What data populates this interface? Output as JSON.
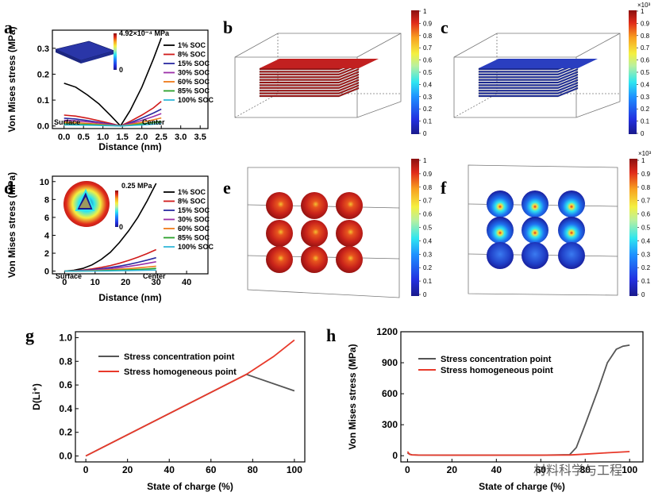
{
  "panels": {
    "a": {
      "letter": "a"
    },
    "b": {
      "letter": "b"
    },
    "c": {
      "letter": "c"
    },
    "d": {
      "letter": "d"
    },
    "e": {
      "letter": "e"
    },
    "f": {
      "letter": "f"
    },
    "g": {
      "letter": "g"
    },
    "h": {
      "letter": "h"
    }
  },
  "colorbars": {
    "b": {
      "ticks": [
        "1",
        "0.9",
        "0.8",
        "0.7",
        "0.6",
        "0.5",
        "0.4",
        "0.3",
        "0.2",
        "0.1",
        "0"
      ],
      "exp": ""
    },
    "c": {
      "ticks": [
        "1",
        "0.9",
        "0.8",
        "0.7",
        "0.6",
        "0.5",
        "0.4",
        "0.3",
        "0.2",
        "0.1",
        "0"
      ],
      "exp": "×10³"
    },
    "e": {
      "ticks": [
        "1",
        "0.9",
        "0.8",
        "0.7",
        "0.6",
        "0.5",
        "0.4",
        "0.3",
        "0.2",
        "0.1",
        "0"
      ],
      "exp": ""
    },
    "f": {
      "ticks": [
        "1",
        "0.9",
        "0.8",
        "0.7",
        "0.6",
        "0.5",
        "0.4",
        "0.3",
        "0.2",
        "0.1",
        "0"
      ],
      "exp": "×10³"
    }
  },
  "colors": {
    "inset_blue": "#2a36a8",
    "red_slab": "#b81a1a",
    "blue_slab": "#2436b0"
  },
  "watermark": "材料科学与工程",
  "chart_data": [
    {
      "panel": "a",
      "type": "line",
      "xlabel": "Distance (nm)",
      "ylabel": "Von Mises stress (MPa)",
      "xlim": [
        -0.3,
        3.7
      ],
      "ylim": [
        -0.01,
        0.37
      ],
      "xticks": [
        0.0,
        0.5,
        1.0,
        1.5,
        2.0,
        2.5,
        3.0,
        3.5
      ],
      "xtick_labels": [
        "0.0",
        "0.5",
        "1.0",
        "1.5",
        "2.0",
        "2.5",
        "3.0",
        "3.5"
      ],
      "yticks": [
        0.0,
        0.1,
        0.2,
        0.3
      ],
      "ytick_labels": [
        "0.0",
        "0.1",
        "0.2",
        "0.3"
      ],
      "annotations": [
        "Surface",
        "Center"
      ],
      "inset_label": "4.92×10⁻⁴ MPa",
      "inset_zero": "0",
      "series": [
        {
          "name": "1% SOC",
          "color": "#000000",
          "x": [
            0,
            0.3,
            0.6,
            0.9,
            1.2,
            1.45,
            1.7,
            2.0,
            2.3,
            2.5
          ],
          "y": [
            0.165,
            0.15,
            0.12,
            0.085,
            0.04,
            0.0,
            0.06,
            0.15,
            0.26,
            0.34
          ]
        },
        {
          "name": "8% SOC",
          "color": "#d01a1a",
          "x": [
            0,
            0.3,
            0.6,
            0.9,
            1.2,
            1.45,
            1.7,
            2.0,
            2.3,
            2.5
          ],
          "y": [
            0.042,
            0.038,
            0.03,
            0.02,
            0.01,
            0.0,
            0.018,
            0.042,
            0.07,
            0.095
          ]
        },
        {
          "name": "15% SOC",
          "color": "#2a2aa0",
          "x": [
            0,
            0.3,
            0.6,
            0.9,
            1.2,
            1.45,
            1.7,
            2.0,
            2.3,
            2.5
          ],
          "y": [
            0.03,
            0.027,
            0.021,
            0.014,
            0.007,
            0.0,
            0.012,
            0.03,
            0.05,
            0.065
          ]
        },
        {
          "name": "30% SOC",
          "color": "#9b30a8",
          "x": [
            0,
            0.3,
            0.6,
            0.9,
            1.2,
            1.45,
            1.7,
            2.0,
            2.3,
            2.5
          ],
          "y": [
            0.022,
            0.02,
            0.016,
            0.011,
            0.005,
            0.0,
            0.009,
            0.022,
            0.037,
            0.048
          ]
        },
        {
          "name": "60% SOC",
          "color": "#ee7a1a",
          "x": [
            0,
            0.3,
            0.6,
            0.9,
            1.2,
            1.45,
            1.7,
            2.0,
            2.3,
            2.5
          ],
          "y": [
            0.014,
            0.013,
            0.01,
            0.007,
            0.003,
            0.0,
            0.006,
            0.014,
            0.024,
            0.031
          ]
        },
        {
          "name": "85% SOC",
          "color": "#2aa02a",
          "x": [
            0,
            0.3,
            0.6,
            0.9,
            1.2,
            1.45,
            1.7,
            2.0,
            2.3,
            2.5
          ],
          "y": [
            0.008,
            0.007,
            0.006,
            0.004,
            0.002,
            0.0,
            0.003,
            0.008,
            0.013,
            0.017
          ]
        },
        {
          "name": "100% SOC",
          "color": "#33b8d8",
          "x": [
            0,
            0.3,
            0.6,
            0.9,
            1.2,
            1.45,
            1.7,
            2.0,
            2.3,
            2.5
          ],
          "y": [
            0.004,
            0.0035,
            0.003,
            0.002,
            0.001,
            0.0,
            0.0015,
            0.004,
            0.007,
            0.009
          ]
        }
      ]
    },
    {
      "panel": "d",
      "type": "line",
      "xlabel": "Distance (nm)",
      "ylabel": "Von Mises stress (MPa)",
      "xlim": [
        -4,
        47
      ],
      "ylim": [
        -0.3,
        10.6
      ],
      "xticks": [
        0,
        10,
        20,
        30,
        40
      ],
      "xtick_labels": [
        "0",
        "10",
        "20",
        "30",
        "40"
      ],
      "yticks": [
        0,
        2,
        4,
        6,
        8,
        10
      ],
      "ytick_labels": [
        "0",
        "2",
        "4",
        "6",
        "8",
        "10"
      ],
      "annotations": [
        "Surface",
        "Center"
      ],
      "inset_label": "0.25 MPa",
      "inset_zero": "0",
      "series": [
        {
          "name": "1% SOC",
          "color": "#000000",
          "x": [
            0,
            3,
            6,
            9,
            12,
            15,
            18,
            21,
            24,
            27,
            30
          ],
          "y": [
            0,
            0.1,
            0.3,
            0.7,
            1.3,
            2.1,
            3.2,
            4.5,
            6.0,
            7.8,
            9.8
          ]
        },
        {
          "name": "8% SOC",
          "color": "#d01a1a",
          "x": [
            0,
            3,
            6,
            9,
            12,
            15,
            18,
            21,
            24,
            27,
            30
          ],
          "y": [
            0,
            0.05,
            0.12,
            0.25,
            0.42,
            0.62,
            0.88,
            1.2,
            1.55,
            1.95,
            2.4
          ]
        },
        {
          "name": "15% SOC",
          "color": "#2a2aa0",
          "x": [
            0,
            3,
            6,
            9,
            12,
            15,
            18,
            21,
            24,
            27,
            30
          ],
          "y": [
            0,
            0.03,
            0.08,
            0.16,
            0.27,
            0.4,
            0.56,
            0.75,
            0.98,
            1.22,
            1.5
          ]
        },
        {
          "name": "30% SOC",
          "color": "#9b30a8",
          "x": [
            0,
            3,
            6,
            9,
            12,
            15,
            18,
            21,
            24,
            27,
            30
          ],
          "y": [
            0,
            0.02,
            0.06,
            0.11,
            0.19,
            0.28,
            0.39,
            0.52,
            0.68,
            0.86,
            1.05
          ]
        },
        {
          "name": "60% SOC",
          "color": "#ee7a1a",
          "x": [
            0,
            3,
            6,
            9,
            12,
            15,
            18,
            21,
            24,
            27,
            30
          ],
          "y": [
            0,
            0.01,
            0.03,
            0.06,
            0.1,
            0.15,
            0.21,
            0.28,
            0.36,
            0.45,
            0.55
          ]
        },
        {
          "name": "85% SOC",
          "color": "#2aa02a",
          "x": [
            0,
            3,
            6,
            9,
            12,
            15,
            18,
            21,
            24,
            27,
            30
          ],
          "y": [
            0,
            0.005,
            0.015,
            0.03,
            0.05,
            0.08,
            0.11,
            0.15,
            0.19,
            0.24,
            0.3
          ]
        },
        {
          "name": "100% SOC",
          "color": "#33b8d8",
          "x": [
            0,
            3,
            6,
            9,
            12,
            15,
            18,
            21,
            24,
            27,
            30
          ],
          "y": [
            0,
            0.002,
            0.006,
            0.012,
            0.02,
            0.03,
            0.045,
            0.06,
            0.08,
            0.1,
            0.12
          ]
        }
      ]
    },
    {
      "panel": "g",
      "type": "line",
      "xlabel": "State of charge (%)",
      "ylabel": "D(Li⁺)",
      "xlim": [
        -5,
        105
      ],
      "ylim": [
        -0.05,
        1.05
      ],
      "xticks": [
        0,
        20,
        40,
        60,
        80,
        100
      ],
      "xtick_labels": [
        "0",
        "20",
        "40",
        "60",
        "80",
        "100"
      ],
      "yticks": [
        0.0,
        0.2,
        0.4,
        0.6,
        0.8,
        1.0
      ],
      "ytick_labels": [
        "0.0",
        "0.2",
        "0.4",
        "0.6",
        "0.8",
        "1.0"
      ],
      "series": [
        {
          "name": "Stress concentration point",
          "color": "#555555",
          "x": [
            0,
            77,
            100
          ],
          "y": [
            0.0,
            0.69,
            0.55
          ]
        },
        {
          "name": "Stress homogeneous point",
          "color": "#e8392a",
          "x": [
            0,
            77,
            90,
            100
          ],
          "y": [
            0.0,
            0.69,
            0.84,
            0.98
          ]
        }
      ]
    },
    {
      "panel": "h",
      "type": "line",
      "xlabel": "State of charge (%)",
      "ylabel": "Von Mises stress (MPa)",
      "xlim": [
        -3,
        106
      ],
      "ylim": [
        -60,
        1200
      ],
      "xticks": [
        0,
        20,
        40,
        60,
        80,
        100
      ],
      "xtick_labels": [
        "0",
        "20",
        "40",
        "60",
        "80",
        "100"
      ],
      "yticks": [
        0,
        300,
        600,
        900,
        1200
      ],
      "ytick_labels": [
        "0",
        "300",
        "600",
        "900",
        "1200"
      ],
      "series": [
        {
          "name": "Stress concentration point",
          "color": "#555555",
          "x": [
            0,
            1,
            2,
            5,
            20,
            40,
            60,
            73,
            76,
            80,
            86,
            90,
            94,
            97,
            100
          ],
          "y": [
            25,
            15,
            8,
            6,
            5,
            5,
            5,
            10,
            80,
            300,
            650,
            900,
            1030,
            1060,
            1070
          ]
        },
        {
          "name": "Stress homogeneous point",
          "color": "#e8392a",
          "x": [
            0,
            0.5,
            1,
            2,
            5,
            20,
            40,
            60,
            73,
            80,
            90,
            100
          ],
          "y": [
            40,
            25,
            12,
            8,
            6,
            5,
            5,
            5,
            7,
            15,
            28,
            40
          ]
        }
      ]
    }
  ]
}
